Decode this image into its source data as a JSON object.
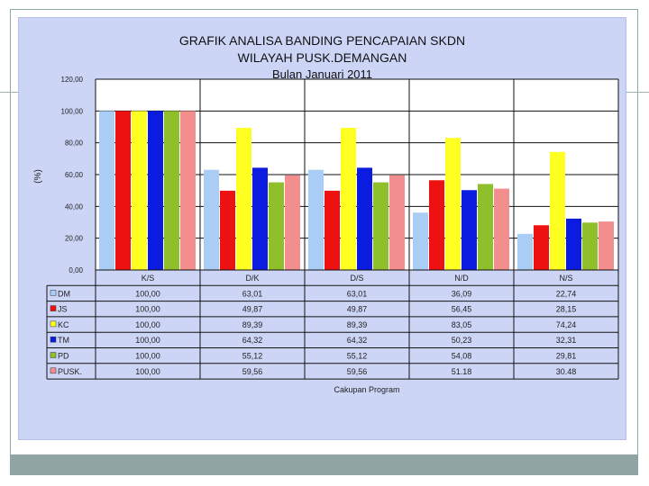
{
  "chart_data": {
    "type": "bar",
    "title": "GRAFIK ANALISA BANDING PENCAPAIAN SKDN",
    "subtitle": "WILAYAH PUSK.DEMANGAN",
    "subtitle2": "Bulan  Januari 2011",
    "ylabel": "(%)",
    "xlabel": "Cakupan Program",
    "ylim": [
      0,
      120
    ],
    "yticks": [
      "0,00",
      "20,00",
      "40,00",
      "60,00",
      "80,00",
      "100,00",
      "120,00"
    ],
    "grid": true,
    "categories": [
      "K/S",
      "D/K",
      "D/S",
      "N/D",
      "N/S"
    ],
    "series": [
      {
        "name": "DM",
        "color": "#a9cdf5",
        "values": [
          100,
          63.01,
          63.01,
          36.09,
          22.74
        ],
        "labels": [
          "100,00",
          "63,01",
          "63,01",
          "36,09",
          "22,74"
        ]
      },
      {
        "name": "JS",
        "color": "#ee1111",
        "values": [
          100,
          49.87,
          49.87,
          56.45,
          28.15
        ],
        "labels": [
          "100,00",
          "49,87",
          "49,87",
          "56,45",
          "28,15"
        ]
      },
      {
        "name": "KC",
        "color": "#ffff22",
        "values": [
          100,
          89.39,
          89.39,
          83.05,
          74.24
        ],
        "labels": [
          "100,00",
          "89,39",
          "89,39",
          "83,05",
          "74,24"
        ]
      },
      {
        "name": "TM",
        "color": "#0b1ce0",
        "values": [
          100,
          64.32,
          64.32,
          50.23,
          32.31
        ],
        "labels": [
          "100,00",
          "64,32",
          "64,32",
          "50,23",
          "32,31"
        ]
      },
      {
        "name": "PD",
        "color": "#8fbf2a",
        "values": [
          100,
          55.12,
          55.12,
          54.08,
          29.81
        ],
        "labels": [
          "100,00",
          "55,12",
          "55,12",
          "54,08",
          "29,81"
        ]
      },
      {
        "name": "PUSK.",
        "color": "#f28e8e",
        "values": [
          100,
          59.56,
          59.56,
          51.18,
          30.48
        ],
        "labels": [
          "100,00",
          "59,56",
          "59,56",
          "51.18",
          "30.48"
        ]
      }
    ]
  }
}
